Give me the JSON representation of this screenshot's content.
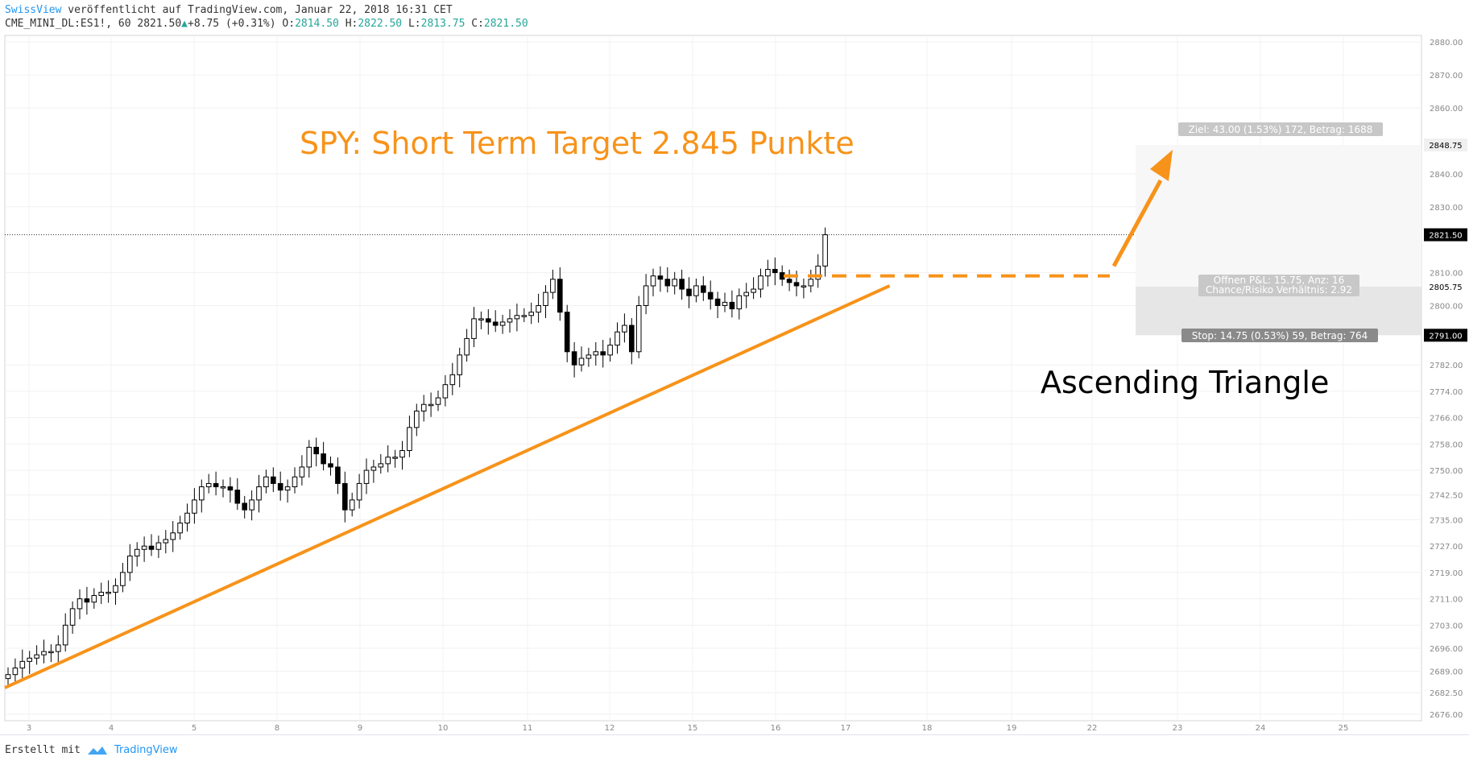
{
  "header": {
    "author": "SwissView",
    "published": "veröffentlicht auf TradingView.com, Januar 22, 2018 16:31 CET",
    "symbol": "CME_MINI_DL:ES1!, 60",
    "last": "2821.50",
    "change": "+8.75 (+0.31%)",
    "o_label": "O:",
    "o": "2814.50",
    "h_label": "H:",
    "h": "2822.50",
    "l_label": "L:",
    "l": "2813.75",
    "c_label": "C:",
    "c": "2821.50"
  },
  "footer": {
    "created_with": "Erstellt mit",
    "brand": "TradingView"
  },
  "colors": {
    "accent": "#f7931a",
    "up": "#26a69a",
    "brand": "#2196f3",
    "candle": "#000000"
  },
  "annotations": {
    "title": "SPY: Short Term Target 2.845 Punkte",
    "pattern": "Ascending Triangle",
    "target_box": "Ziel: 43.00 (1.53%) 172, Betrag: 1688",
    "stop_box": "Stop: 14.75 (0.53%) 59, Betrag: 764",
    "open_pl": "Offnen P&L: 15.75, Anz: 16",
    "risk_ratio": "Chance/Risiko Verhältnis: 2.92"
  },
  "chart_data": {
    "type": "candlestick",
    "title": "",
    "ylim": [
      2674,
      2882
    ],
    "y_ticks": [
      "2880.00",
      "2870.00",
      "2860.00",
      "2848.75",
      "2840.00",
      "2830.00",
      "2821.50",
      "2810.00",
      "2805.75",
      "2800.00",
      "2791.00",
      "2782.00",
      "2774.00",
      "2766.00",
      "2758.00",
      "2750.00",
      "2742.50",
      "2735.00",
      "2727.00",
      "2719.00",
      "2711.00",
      "2703.00",
      "2696.00",
      "2689.00",
      "2682.50",
      "2676.00"
    ],
    "price_labels": {
      "last": 2821.5,
      "entry": 2805.75,
      "target": 2848.75,
      "stop": 2791.0
    },
    "x_ticks": [
      "3",
      "4",
      "5",
      "8",
      "9",
      "10",
      "11",
      "12",
      "15",
      "16",
      "17",
      "18",
      "19",
      "22",
      "23",
      "24",
      "25"
    ],
    "closes": [
      2688,
      2690,
      2692,
      2693,
      2694,
      2695,
      2695,
      2697,
      2703,
      2708,
      2711,
      2710,
      2712,
      2713,
      2713,
      2715,
      2719,
      2724,
      2726,
      2727,
      2726,
      2728,
      2729,
      2731,
      2734,
      2737,
      2741,
      2745,
      2746,
      2745,
      2745,
      2744,
      2740,
      2738,
      2741,
      2745,
      2748,
      2746,
      2744,
      2745,
      2748,
      2751,
      2757,
      2755,
      2752,
      2751,
      2746,
      2738,
      2741,
      2746,
      2750,
      2751,
      2752,
      2754,
      2754,
      2756,
      2763,
      2768,
      2770,
      2770,
      2772,
      2776,
      2779,
      2785,
      2790,
      2796,
      2796,
      2795,
      2794,
      2795,
      2796,
      2797,
      2797,
      2798,
      2800,
      2804,
      2808,
      2798,
      2786,
      2782,
      2784,
      2785,
      2786,
      2785,
      2788,
      2792,
      2794,
      2786,
      2800,
      2806,
      2809,
      2808,
      2806,
      2808,
      2805,
      2803,
      2806,
      2804,
      2802,
      2800,
      2801,
      2799,
      2803,
      2804,
      2805,
      2809,
      2811,
      2810,
      2808,
      2807,
      2806,
      2806,
      2808,
      2812,
      2821.5
    ],
    "support_line": [
      [
        0,
        2684
      ],
      [
        114,
        2806
      ]
    ],
    "resistance_level": 2809,
    "target_level": 2848.75,
    "entry_level": 2805.75,
    "stop_level": 2791.0
  }
}
